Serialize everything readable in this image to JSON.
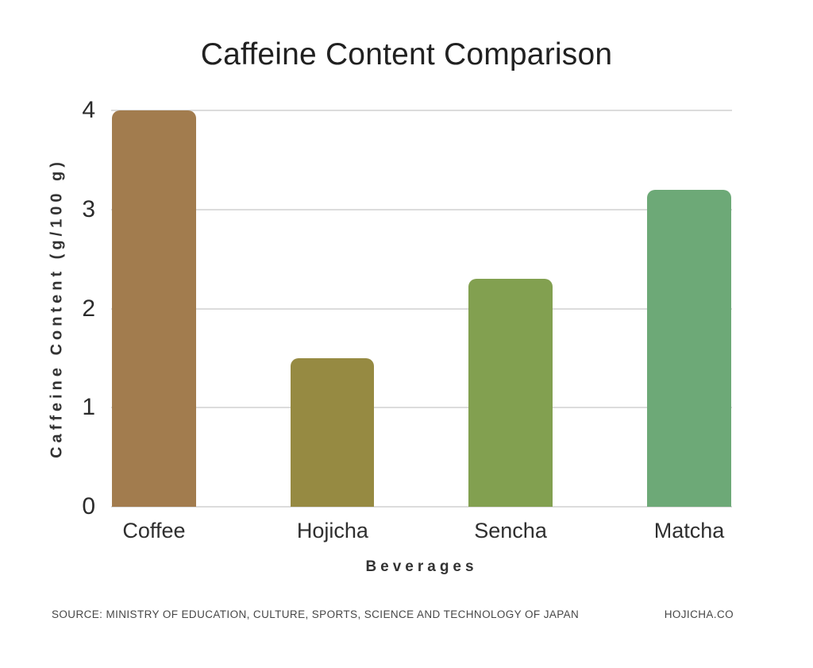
{
  "title": "Caffeine Content Comparison",
  "chart_data": {
    "type": "bar",
    "categories": [
      "Coffee",
      "Hojicha",
      "Sencha",
      "Matcha"
    ],
    "values": [
      4.0,
      1.5,
      2.3,
      3.2
    ],
    "bar_colors": [
      "#A27C4E",
      "#968A42",
      "#82A050",
      "#6DA977"
    ],
    "title": "Caffeine Content Comparison",
    "xlabel": "Beverages",
    "ylabel": "Caffeine Content (g/100 g)",
    "ylim": [
      0,
      4
    ],
    "yticks": [
      0,
      1,
      2,
      3,
      4
    ],
    "grid": true,
    "gridline_color": "#dcdcdc",
    "legend": false,
    "background": "#ffffff"
  },
  "footer": {
    "source": "SOURCE: MINISTRY OF EDUCATION, CULTURE, SPORTS, SCIENCE AND TECHNOLOGY OF JAPAN",
    "brand": "HOJICHA.CO"
  }
}
